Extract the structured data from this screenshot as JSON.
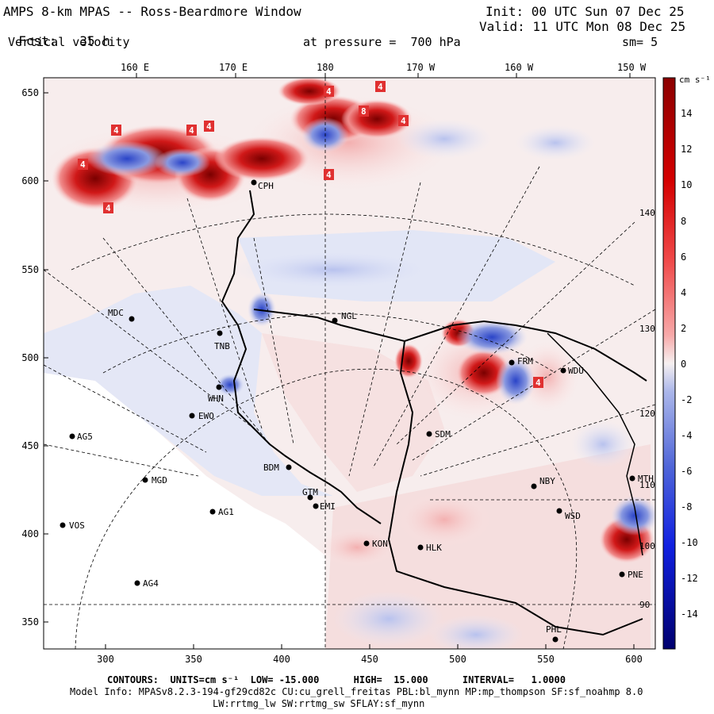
{
  "header": {
    "title": "AMPS 8-km MPAS -- Ross-Beardmore Window",
    "fcst_label": "Fcst:",
    "fcst_value": "35 h",
    "variable": "Vertical velocity",
    "init": "Init: 00 UTC Sun 07 Dec 25",
    "valid": "Valid: 11 UTC Mon 08 Dec 25",
    "pressure_label": "at pressure =",
    "pressure_value": "700 hPa",
    "smoothing": "sm= 5"
  },
  "map": {
    "longitude_labels": [
      "160 E",
      "170 E",
      "180",
      "170 W",
      "160 W",
      "150 W"
    ],
    "y_ticks": [
      "650",
      "600",
      "550",
      "500",
      "450",
      "400",
      "350"
    ],
    "x_ticks": [
      "300",
      "350",
      "400",
      "450",
      "500",
      "550",
      "600"
    ],
    "meridian_labels": [
      "140 W",
      "130 W",
      "120 W",
      "110 W",
      "100 W",
      "90 W"
    ],
    "stations": [
      {
        "id": "MDC",
        "label": "MDC"
      },
      {
        "id": "NGL",
        "label": "NGL"
      },
      {
        "id": "AG5",
        "label": "AG5"
      },
      {
        "id": "MGD",
        "label": "MGD"
      },
      {
        "id": "AG1",
        "label": "AG1"
      },
      {
        "id": "VOS",
        "label": "VOS"
      },
      {
        "id": "AG4",
        "label": "AG4"
      },
      {
        "id": "BDM",
        "label": "BDM"
      },
      {
        "id": "GTM",
        "label": "GTM"
      },
      {
        "id": "EMI",
        "label": "EMI"
      },
      {
        "id": "KON",
        "label": "KON"
      },
      {
        "id": "HLK",
        "label": "HLK"
      },
      {
        "id": "SDM",
        "label": "SDM"
      },
      {
        "id": "NBY",
        "label": "NBY"
      },
      {
        "id": "WSD",
        "label": "WSD"
      },
      {
        "id": "MTH",
        "label": "MTH"
      },
      {
        "id": "PNE",
        "label": "PNE"
      },
      {
        "id": "PHL",
        "label": "PHL"
      },
      {
        "id": "FRM",
        "label": "FRM"
      },
      {
        "id": "WDU",
        "label": "WDU"
      },
      {
        "id": "WHN",
        "label": "WHN"
      },
      {
        "id": "EWO",
        "label": "EWO"
      },
      {
        "id": "TNB",
        "label": "TNB"
      },
      {
        "id": "CPH",
        "label": "CPH"
      }
    ],
    "contour_labels": [
      "4",
      "4",
      "4",
      "4",
      "4",
      "4",
      "4",
      "8",
      "4",
      "4",
      "4"
    ]
  },
  "colorbar": {
    "unit_label": "cm s⁻¹",
    "ticks": [
      "14",
      "12",
      "10",
      "8",
      "6",
      "4",
      "2",
      "0",
      "-2",
      "-4",
      "-6",
      "-8",
      "-10",
      "-12",
      "-14"
    ],
    "colors": {
      "max": "#8b0000",
      "high": "#e53030",
      "mid_pos": "#f59a9a",
      "zero": "#f8eeee",
      "mid_neg": "#9aa8e8",
      "low": "#2040d8",
      "min": "#00006e"
    }
  },
  "footer": {
    "contours": "CONTOURS:  UNITS=cm s⁻¹  LOW= -15.000      HIGH=  15.000      INTERVAL=   1.0000",
    "model_info": "Model Info: MPASv8.2.3-194-gf29cd82c CU:cu_grell_freitas PBL:bl_mynn MP:mp_thompson SF:sf_noahmp 8.0",
    "radiation": "LW:rrtmg_lw SW:rrtmg_sw SFLAY:sf_mynn"
  }
}
